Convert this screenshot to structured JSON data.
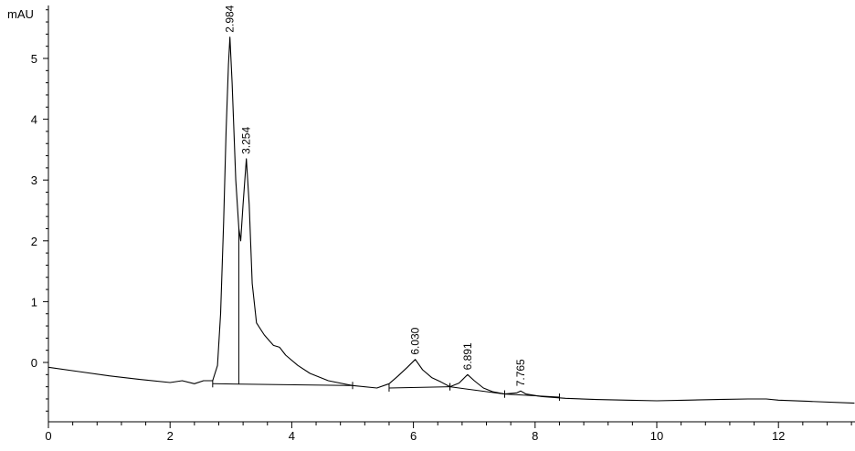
{
  "chart_data": {
    "type": "line",
    "title": "",
    "xlabel": "",
    "ylabel": "mAU",
    "xlim": [
      0,
      13.25
    ],
    "ylim": [
      -0.9,
      5.9
    ],
    "x_ticks": [
      0,
      2,
      4,
      6,
      8,
      10,
      12
    ],
    "y_ticks": [
      0,
      1,
      2,
      3,
      4,
      5
    ],
    "grid": false,
    "series": [
      {
        "x": [
          0.0,
          0.5,
          1.0,
          1.5,
          2.0,
          2.2,
          2.4,
          2.55,
          2.7,
          2.78,
          2.83,
          2.88,
          2.92,
          2.96,
          2.984,
          3.02,
          3.08,
          3.13,
          3.16,
          3.2,
          3.254,
          3.3,
          3.35,
          3.42,
          3.55,
          3.7,
          3.8,
          3.9,
          4.1,
          4.3,
          4.6,
          5.0,
          5.4,
          5.6,
          5.75,
          5.9,
          6.03,
          6.15,
          6.3,
          6.45,
          6.6,
          6.75,
          6.891,
          7.0,
          7.15,
          7.3,
          7.5,
          7.7,
          7.765,
          7.85,
          8.1,
          8.5,
          9.0,
          9.5,
          10.0,
          10.5,
          11.0,
          11.5,
          11.8,
          12.0,
          12.5,
          13.25
        ],
        "y": [
          -0.08,
          -0.15,
          -0.22,
          -0.28,
          -0.33,
          -0.3,
          -0.35,
          -0.3,
          -0.3,
          -0.05,
          0.8,
          2.3,
          3.8,
          4.9,
          5.35,
          4.6,
          3.0,
          2.2,
          2.0,
          2.6,
          3.35,
          2.6,
          1.3,
          0.65,
          0.45,
          0.28,
          0.25,
          0.12,
          -0.05,
          -0.18,
          -0.3,
          -0.38,
          -0.42,
          -0.35,
          -0.22,
          -0.08,
          0.05,
          -0.12,
          -0.25,
          -0.32,
          -0.4,
          -0.34,
          -0.2,
          -0.3,
          -0.42,
          -0.48,
          -0.52,
          -0.5,
          -0.47,
          -0.52,
          -0.56,
          -0.59,
          -0.61,
          -0.62,
          -0.63,
          -0.62,
          -0.61,
          -0.6,
          -0.6,
          -0.62,
          -0.64,
          -0.67
        ]
      }
    ],
    "peaks": [
      {
        "label": "2.984",
        "x": 2.984,
        "y": 5.35
      },
      {
        "label": "3.254",
        "x": 3.254,
        "y": 3.35
      },
      {
        "label": "6.030",
        "x": 6.03,
        "y": 0.05
      },
      {
        "label": "6.891",
        "x": 6.891,
        "y": -0.2
      },
      {
        "label": "7.765",
        "x": 7.765,
        "y": -0.47
      }
    ],
    "baselines": [
      {
        "x": [
          2.7,
          5.0
        ],
        "y": [
          -0.35,
          -0.38
        ]
      },
      {
        "x": [
          5.6,
          6.6
        ],
        "y": [
          -0.42,
          -0.4
        ]
      },
      {
        "x": [
          6.6,
          7.5
        ],
        "y": [
          -0.4,
          -0.52
        ]
      },
      {
        "x": [
          7.5,
          8.4
        ],
        "y": [
          -0.52,
          -0.57
        ]
      }
    ],
    "dividers": [
      {
        "x": 3.13,
        "y_top": 2.2,
        "y_bottom": -0.36
      }
    ]
  }
}
